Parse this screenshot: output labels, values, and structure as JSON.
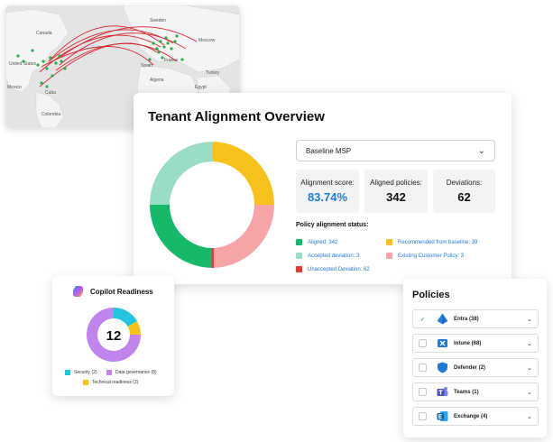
{
  "map": {
    "labels": [
      "Canada",
      "United States",
      "Mexico",
      "Colombia",
      "Sweden",
      "Moscow",
      "Spain",
      "Algeria",
      "Turkey",
      "Egypt",
      "France",
      "Cuba"
    ]
  },
  "tenant": {
    "title": "Tenant Alignment Overview",
    "baseline": "Baseline MSP",
    "stats": {
      "alignment_score_label": "Alignment score:",
      "alignment_score": "83.74%",
      "aligned_policies_label": "Aligned policies:",
      "aligned_policies": "342",
      "deviations_label": "Deviations:",
      "deviations": "62"
    },
    "status_title": "Policy alignment status:",
    "legend": [
      {
        "label": "Aligned: 342",
        "color": "#16b86a"
      },
      {
        "label": "Accepted deviation: 3",
        "color": "#9bdcc7"
      },
      {
        "label": "Unaccepted Deviation: 62",
        "color": "#e03c3c"
      },
      {
        "label": "Recommended from baseline: 39",
        "color": "#f7c21e"
      },
      {
        "label": "Existing Customer Policy: 3",
        "color": "#f7a4a8"
      }
    ],
    "colors": {
      "green": "#16b86a",
      "mint": "#9bdcc7",
      "yellow": "#f7c21e",
      "pink": "#f7a4a8",
      "red": "#e03c3c",
      "accent_blue": "#1f7ad6"
    }
  },
  "copilot": {
    "title": "Copilot Readiness",
    "center_value": "12",
    "legend": [
      {
        "label": "Security (2)",
        "color": "#22c4e0"
      },
      {
        "label": "Data governance (8)",
        "color": "#c084ec"
      },
      {
        "label": "Technical readiness (2)",
        "color": "#f7c21e"
      }
    ]
  },
  "policies": {
    "title": "Policies",
    "items": [
      {
        "label": "Entra (38)",
        "checked": true,
        "icon": "entra-icon"
      },
      {
        "label": "Intune (68)",
        "checked": false,
        "icon": "intune-icon"
      },
      {
        "label": "Defender (2)",
        "checked": false,
        "icon": "defender-icon"
      },
      {
        "label": "Teams (1)",
        "checked": false,
        "icon": "teams-icon"
      },
      {
        "label": "Exchange (4)",
        "checked": false,
        "icon": "exchange-icon"
      }
    ]
  }
}
